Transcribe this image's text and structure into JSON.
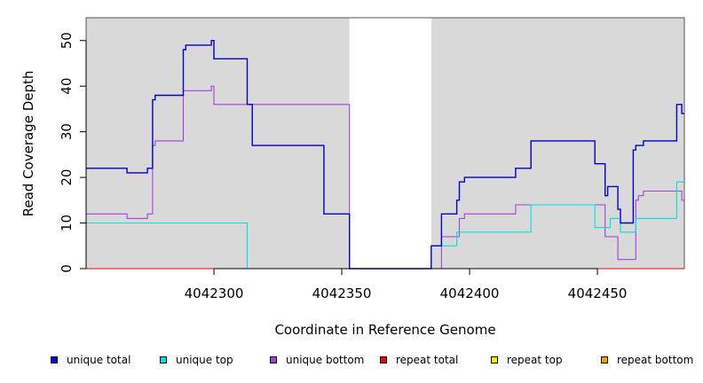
{
  "chart_data": {
    "type": "line",
    "title": "",
    "xlabel": "Coordinate in Reference Genome",
    "ylabel": "Read Coverage Depth",
    "xlim": [
      4042250,
      4042484
    ],
    "ylim": [
      0,
      55
    ],
    "xticks": [
      4042300,
      4042350,
      4042400,
      4042450
    ],
    "xtick_labels": [
      "4042300",
      "4042350",
      "4042400",
      "4042450"
    ],
    "yticks": [
      0,
      10,
      20,
      30,
      40,
      50
    ],
    "ytick_labels": [
      "0",
      "10",
      "20",
      "30",
      "40",
      "50"
    ],
    "shaded_regions": [
      [
        4042250,
        4042353
      ],
      [
        4042385,
        4042484
      ]
    ],
    "grid": false,
    "legend_position": "bottom",
    "series": [
      {
        "name": "unique total",
        "color": "#0000cc",
        "step_x": [
          4042250,
          4042266,
          4042274,
          4042276,
          4042277,
          4042288,
          4042289,
          4042299,
          4042300,
          4042313,
          4042315,
          4042343,
          4042353,
          4042385,
          4042389,
          4042395,
          4042396,
          4042398,
          4042418,
          4042424,
          4042449,
          4042453,
          4042454,
          4042458,
          4042459,
          4042464,
          4042465,
          4042466,
          4042468,
          4042481,
          4042483,
          4042484
        ],
        "step_y": [
          22,
          21,
          22,
          37,
          38,
          48,
          49,
          50,
          46,
          36,
          27,
          12,
          0,
          5,
          12,
          15,
          19,
          20,
          22,
          28,
          23,
          16,
          18,
          13,
          10,
          26,
          27,
          27,
          28,
          36,
          34
        ]
      },
      {
        "name": "unique top",
        "color": "#00e0e0",
        "step_x": [
          4042250,
          4042313,
          4042353,
          4042385,
          4042389,
          4042395,
          4042424,
          4042449,
          4042455,
          4042459,
          4042465,
          4042481,
          4042484
        ],
        "step_y": [
          10,
          0,
          0,
          5,
          5,
          8,
          14,
          9,
          11,
          8,
          11,
          19
        ]
      },
      {
        "name": "unique bottom",
        "color": "#a040e0",
        "step_x": [
          4042250,
          4042266,
          4042274,
          4042276,
          4042277,
          4042288,
          4042299,
          4042300,
          4042313,
          4042353,
          4042389,
          4042395,
          4042396,
          4042398,
          4042418,
          4042453,
          4042458,
          4042465,
          4042466,
          4042468,
          4042483,
          4042484
        ],
        "step_y": [
          12,
          11,
          12,
          27,
          28,
          39,
          40,
          36,
          36,
          0,
          7,
          7,
          11,
          12,
          14,
          7,
          2,
          15,
          16,
          17,
          15
        ]
      },
      {
        "name": "repeat total",
        "color": "#ee0000",
        "step_x": [
          4042250,
          4042484
        ],
        "step_y": [
          0
        ]
      },
      {
        "name": "repeat top",
        "color": "#eeee00",
        "step_x": [
          4042250,
          4042484
        ],
        "step_y": [
          0
        ]
      },
      {
        "name": "repeat bottom",
        "color": "#f0a000",
        "step_x": [
          4042250,
          4042484
        ],
        "step_y": [
          0
        ]
      }
    ]
  }
}
